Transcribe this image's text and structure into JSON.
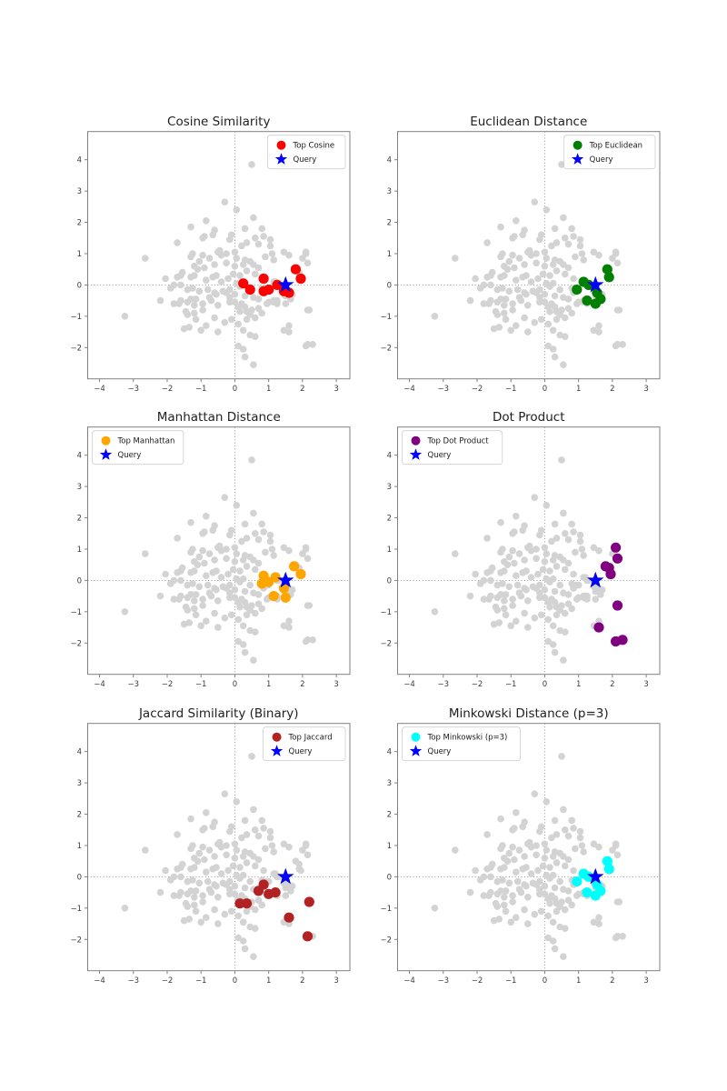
{
  "figure": {
    "background": "#ffffff",
    "description": "2x3 grid of scatter subplots comparing similarity metrics"
  },
  "chart_data": {
    "type": "scatter",
    "layout": {
      "rows": 3,
      "cols": 2,
      "xlim": [
        -4.35,
        3.4
      ],
      "ylim": [
        -3.0,
        4.9
      ],
      "xticks": [
        -4,
        -3,
        -2,
        -1,
        0,
        1,
        2,
        3
      ],
      "yticks": [
        -2,
        -1,
        0,
        1,
        2,
        3,
        4
      ],
      "grid": false,
      "zero_lines": "dotted",
      "spine_color": "#808080",
      "tick_label_color": "#3b3b3b",
      "title_color": "#1f1f1f"
    },
    "query": {
      "label": "Query",
      "point": [
        1.5,
        0.0
      ],
      "color": "#0000ff",
      "marker": "star"
    },
    "background_points": {
      "color": "#d3d3d3",
      "points": [
        [
          0.5,
          3.85
        ],
        [
          -0.3,
          2.65
        ],
        [
          0.05,
          2.4
        ],
        [
          0.55,
          2.15
        ],
        [
          -0.85,
          2.05
        ],
        [
          -0.6,
          1.75
        ],
        [
          0.3,
          1.8
        ],
        [
          0.8,
          1.8
        ],
        [
          -1.3,
          1.85
        ],
        [
          -0.95,
          1.5
        ],
        [
          -0.15,
          1.45
        ],
        [
          0.6,
          1.5
        ],
        [
          -1.7,
          1.35
        ],
        [
          -0.9,
          1.55
        ],
        [
          -0.65,
          1.6
        ],
        [
          -0.1,
          1.6
        ],
        [
          0.85,
          1.55
        ],
        [
          1.05,
          1.45
        ],
        [
          0.2,
          1.25
        ],
        [
          0.35,
          1.35
        ],
        [
          0.7,
          1.3
        ],
        [
          -0.45,
          1.1
        ],
        [
          -0.25,
          1.0
        ],
        [
          0.0,
          1.05
        ],
        [
          1.1,
          1.0
        ],
        [
          1.45,
          1.05
        ],
        [
          2.1,
          1.0
        ],
        [
          -1.25,
          1.0
        ],
        [
          -0.5,
          1.05
        ],
        [
          1.05,
          1.25
        ],
        [
          -2.65,
          0.85
        ],
        [
          -1.3,
          0.9
        ],
        [
          -0.95,
          0.95
        ],
        [
          -0.6,
          0.65
        ],
        [
          -0.25,
          0.7
        ],
        [
          0.0,
          0.6
        ],
        [
          0.3,
          0.8
        ],
        [
          0.55,
          0.65
        ],
        [
          0.9,
          0.9
        ],
        [
          1.15,
          0.8
        ],
        [
          1.6,
          0.95
        ],
        [
          2.0,
          0.85
        ],
        [
          -1.05,
          0.75
        ],
        [
          -0.75,
          0.85
        ],
        [
          0.05,
          0.85
        ],
        [
          0.45,
          0.75
        ],
        [
          0.7,
          0.55
        ],
        [
          -0.4,
          0.95
        ],
        [
          0.25,
          0.65
        ],
        [
          -1.2,
          0.6
        ],
        [
          -0.9,
          0.55
        ],
        [
          -2.05,
          0.2
        ],
        [
          -1.7,
          0.25
        ],
        [
          -1.55,
          0.4
        ],
        [
          -1.6,
          0.3
        ],
        [
          -1.1,
          0.5
        ],
        [
          -0.55,
          0.3
        ],
        [
          -1.3,
          0.25
        ],
        [
          -0.85,
          0.15
        ],
        [
          -0.65,
          0.25
        ],
        [
          -0.4,
          0.1
        ],
        [
          -0.2,
          0.2
        ],
        [
          0.05,
          0.05
        ],
        [
          0.15,
          0.3
        ],
        [
          -1.2,
          0.3
        ],
        [
          -0.05,
          0.35
        ],
        [
          0.35,
          0.45
        ],
        [
          0.6,
          0.35
        ],
        [
          -1.8,
          0.0
        ],
        [
          -1.6,
          0.0
        ],
        [
          -1.9,
          -0.1
        ],
        [
          -1.4,
          -0.15
        ],
        [
          0.15,
          -0.05
        ],
        [
          -0.15,
          -0.15
        ],
        [
          -1.25,
          -0.1
        ],
        [
          -1.05,
          -0.2
        ],
        [
          -0.8,
          -0.15
        ],
        [
          -0.6,
          -0.25
        ],
        [
          -0.35,
          -0.2
        ],
        [
          -0.75,
          -0.4
        ],
        [
          -0.55,
          -0.3
        ],
        [
          -0.25,
          -0.25
        ],
        [
          -0.15,
          -0.4
        ],
        [
          0.0,
          -0.3
        ],
        [
          0.3,
          -0.35
        ],
        [
          0.55,
          -0.4
        ],
        [
          1.5,
          -0.35
        ],
        [
          1.7,
          -0.3
        ],
        [
          -1.15,
          -0.45
        ],
        [
          -1.3,
          -0.45
        ],
        [
          -2.2,
          -0.5
        ],
        [
          -1.8,
          -0.6
        ],
        [
          -1.6,
          -0.5
        ],
        [
          -1.45,
          -0.85
        ],
        [
          -1.2,
          -0.65
        ],
        [
          -0.95,
          -0.8
        ],
        [
          -0.7,
          -0.5
        ],
        [
          -0.5,
          -0.65
        ],
        [
          0.0,
          -0.55
        ],
        [
          0.2,
          -0.6
        ],
        [
          0.3,
          -0.7
        ],
        [
          0.95,
          -0.6
        ],
        [
          1.15,
          -0.55
        ],
        [
          1.25,
          -0.6
        ],
        [
          -1.65,
          -0.6
        ],
        [
          -1.4,
          -0.55
        ],
        [
          -0.95,
          -0.6
        ],
        [
          -0.15,
          -0.55
        ],
        [
          0.1,
          -0.7
        ],
        [
          0.5,
          -0.8
        ],
        [
          0.7,
          -0.75
        ],
        [
          -1.4,
          -0.95
        ],
        [
          -1.2,
          -0.9
        ],
        [
          0.45,
          -0.95
        ],
        [
          0.8,
          -0.9
        ],
        [
          -3.25,
          -1.0
        ],
        [
          -1.5,
          -1.4
        ],
        [
          -1.35,
          -1.35
        ],
        [
          -1.0,
          -1.45
        ],
        [
          -0.85,
          -1.3
        ],
        [
          -0.5,
          -1.5
        ],
        [
          0.6,
          -1.65
        ],
        [
          1.45,
          -1.45
        ],
        [
          -0.3,
          -1.2
        ],
        [
          -0.1,
          -1.1
        ],
        [
          0.1,
          -1.25
        ],
        [
          0.35,
          -1.1
        ],
        [
          0.6,
          -1.05
        ],
        [
          -0.6,
          -1.05
        ],
        [
          -1.15,
          -1.1
        ],
        [
          0.25,
          -1.45
        ],
        [
          0.45,
          -1.6
        ],
        [
          0.1,
          -1.95
        ],
        [
          0.25,
          -2.05
        ],
        [
          0.3,
          -2.3
        ],
        [
          0.55,
          -2.55
        ],
        [
          2.3,
          -1.9
        ],
        [
          0.25,
          0.05
        ],
        [
          0.45,
          -0.15
        ],
        [
          0.85,
          0.2
        ],
        [
          0.85,
          -0.2
        ],
        [
          1.0,
          -0.15
        ],
        [
          1.25,
          0.0
        ],
        [
          1.45,
          -0.2
        ],
        [
          1.6,
          -0.25
        ],
        [
          1.8,
          0.5
        ],
        [
          1.95,
          0.2
        ],
        [
          1.9,
          0.25
        ],
        [
          1.15,
          0.1
        ],
        [
          1.3,
          0.0
        ],
        [
          0.95,
          -0.15
        ],
        [
          1.55,
          -0.25
        ],
        [
          1.25,
          -0.5
        ],
        [
          1.5,
          -0.6
        ],
        [
          1.65,
          -0.45
        ],
        [
          0.8,
          -0.1
        ],
        [
          1.2,
          0.1
        ],
        [
          1.15,
          -0.5
        ],
        [
          2.1,
          1.05
        ],
        [
          2.15,
          0.7
        ],
        [
          1.9,
          0.4
        ],
        [
          2.15,
          -0.8
        ],
        [
          1.6,
          -1.5
        ],
        [
          2.1,
          -1.95
        ],
        [
          0.85,
          -0.25
        ],
        [
          0.7,
          -0.45
        ],
        [
          1.0,
          -0.55
        ],
        [
          1.2,
          -0.5
        ],
        [
          0.15,
          -0.85
        ],
        [
          0.35,
          -0.85
        ],
        [
          2.2,
          -0.8
        ],
        [
          1.6,
          -1.3
        ],
        [
          2.15,
          -1.9
        ]
      ]
    },
    "subplots": [
      {
        "title": "Cosine Similarity",
        "legend": {
          "label": "Top Cosine",
          "position": "top-right"
        },
        "color": "#ff0000",
        "marker": "circle",
        "points": [
          [
            0.25,
            0.05
          ],
          [
            0.45,
            -0.15
          ],
          [
            0.85,
            0.2
          ],
          [
            0.85,
            -0.2
          ],
          [
            1.0,
            -0.15
          ],
          [
            1.25,
            0.0
          ],
          [
            1.45,
            -0.2
          ],
          [
            1.6,
            -0.25
          ],
          [
            1.8,
            0.5
          ],
          [
            1.95,
            0.2
          ]
        ]
      },
      {
        "title": "Euclidean Distance",
        "legend": {
          "label": "Top Euclidean",
          "position": "top-right"
        },
        "color": "#008000",
        "marker": "circle",
        "points": [
          [
            1.85,
            0.5
          ],
          [
            1.9,
            0.25
          ],
          [
            1.15,
            0.1
          ],
          [
            1.3,
            0.0
          ],
          [
            0.95,
            -0.15
          ],
          [
            1.55,
            -0.25
          ],
          [
            1.25,
            -0.5
          ],
          [
            1.5,
            -0.6
          ],
          [
            1.65,
            -0.45
          ]
        ]
      },
      {
        "title": "Manhattan Distance",
        "legend": {
          "label": "Top Manhattan",
          "position": "top-left"
        },
        "color": "#ffa500",
        "marker": "circle",
        "points": [
          [
            1.75,
            0.45
          ],
          [
            1.95,
            0.2
          ],
          [
            0.85,
            0.15
          ],
          [
            0.8,
            -0.1
          ],
          [
            1.0,
            -0.05
          ],
          [
            1.2,
            0.1
          ],
          [
            1.45,
            -0.25
          ],
          [
            1.15,
            -0.5
          ],
          [
            1.5,
            -0.55
          ]
        ]
      },
      {
        "title": "Dot Product",
        "legend": {
          "label": "Top Dot Product",
          "position": "top-left"
        },
        "color": "#800080",
        "marker": "circle",
        "points": [
          [
            2.1,
            1.05
          ],
          [
            2.15,
            0.7
          ],
          [
            1.8,
            0.45
          ],
          [
            1.9,
            0.4
          ],
          [
            1.95,
            0.2
          ],
          [
            2.15,
            -0.8
          ],
          [
            1.6,
            -1.5
          ],
          [
            2.1,
            -1.95
          ],
          [
            2.3,
            -1.9
          ]
        ]
      },
      {
        "title": "Jaccard Similarity (Binary)",
        "legend": {
          "label": "Top Jaccard",
          "position": "top-right"
        },
        "color": "#b22222",
        "marker": "circle",
        "points": [
          [
            0.85,
            -0.25
          ],
          [
            0.7,
            -0.45
          ],
          [
            1.0,
            -0.55
          ],
          [
            1.2,
            -0.5
          ],
          [
            0.15,
            -0.85
          ],
          [
            0.35,
            -0.85
          ],
          [
            2.2,
            -0.8
          ],
          [
            1.6,
            -1.3
          ],
          [
            2.15,
            -1.9
          ]
        ]
      },
      {
        "title": "Minkowski Distance (p=3)",
        "legend": {
          "label": "Top Minkowski (p=3)",
          "position": "top-left"
        },
        "color": "#00ffff",
        "marker": "circle",
        "points": [
          [
            1.85,
            0.5
          ],
          [
            1.9,
            0.25
          ],
          [
            1.15,
            0.1
          ],
          [
            1.3,
            0.0
          ],
          [
            0.95,
            -0.15
          ],
          [
            1.55,
            -0.25
          ],
          [
            1.25,
            -0.5
          ],
          [
            1.5,
            -0.6
          ],
          [
            1.65,
            -0.45
          ]
        ]
      }
    ]
  }
}
